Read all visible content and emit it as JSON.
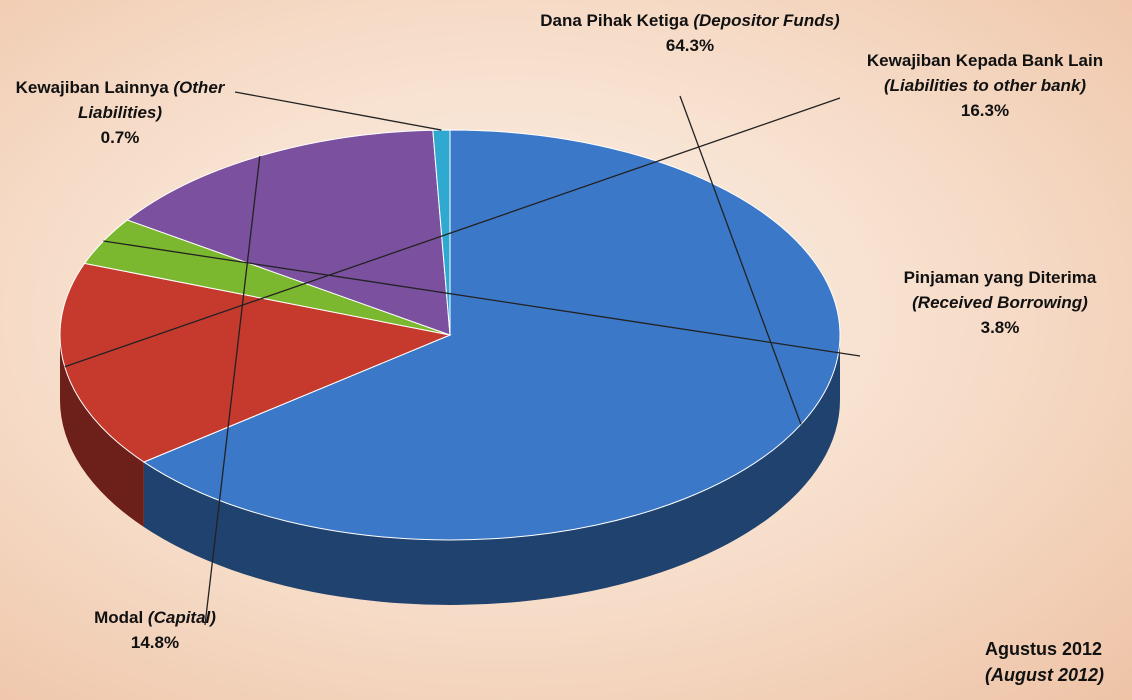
{
  "chart_data": {
    "type": "pie",
    "categories": [
      "Dana Pihak Ketiga",
      "Kewajiban Kepada Bank Lain",
      "Pinjaman yang Diterima",
      "Modal",
      "Kewajiban Lainnya"
    ],
    "categories_en": [
      "(Depositor Funds)",
      "(Liabilities to other bank)",
      "(Received Borrowing)",
      "(Capital)",
      "(Other Liabilities)"
    ],
    "values": [
      64.3,
      16.3,
      3.8,
      14.8,
      0.7
    ],
    "value_labels": [
      "64.3%",
      "16.3%",
      "3.8%",
      "14.8%",
      "0.7%"
    ],
    "colors": [
      "#3b78c8",
      "#c63a2e",
      "#7cb82f",
      "#7b509f",
      "#30a9d0"
    ],
    "annotation": [
      "Agustus 2012",
      "(August 2012)"
    ]
  }
}
